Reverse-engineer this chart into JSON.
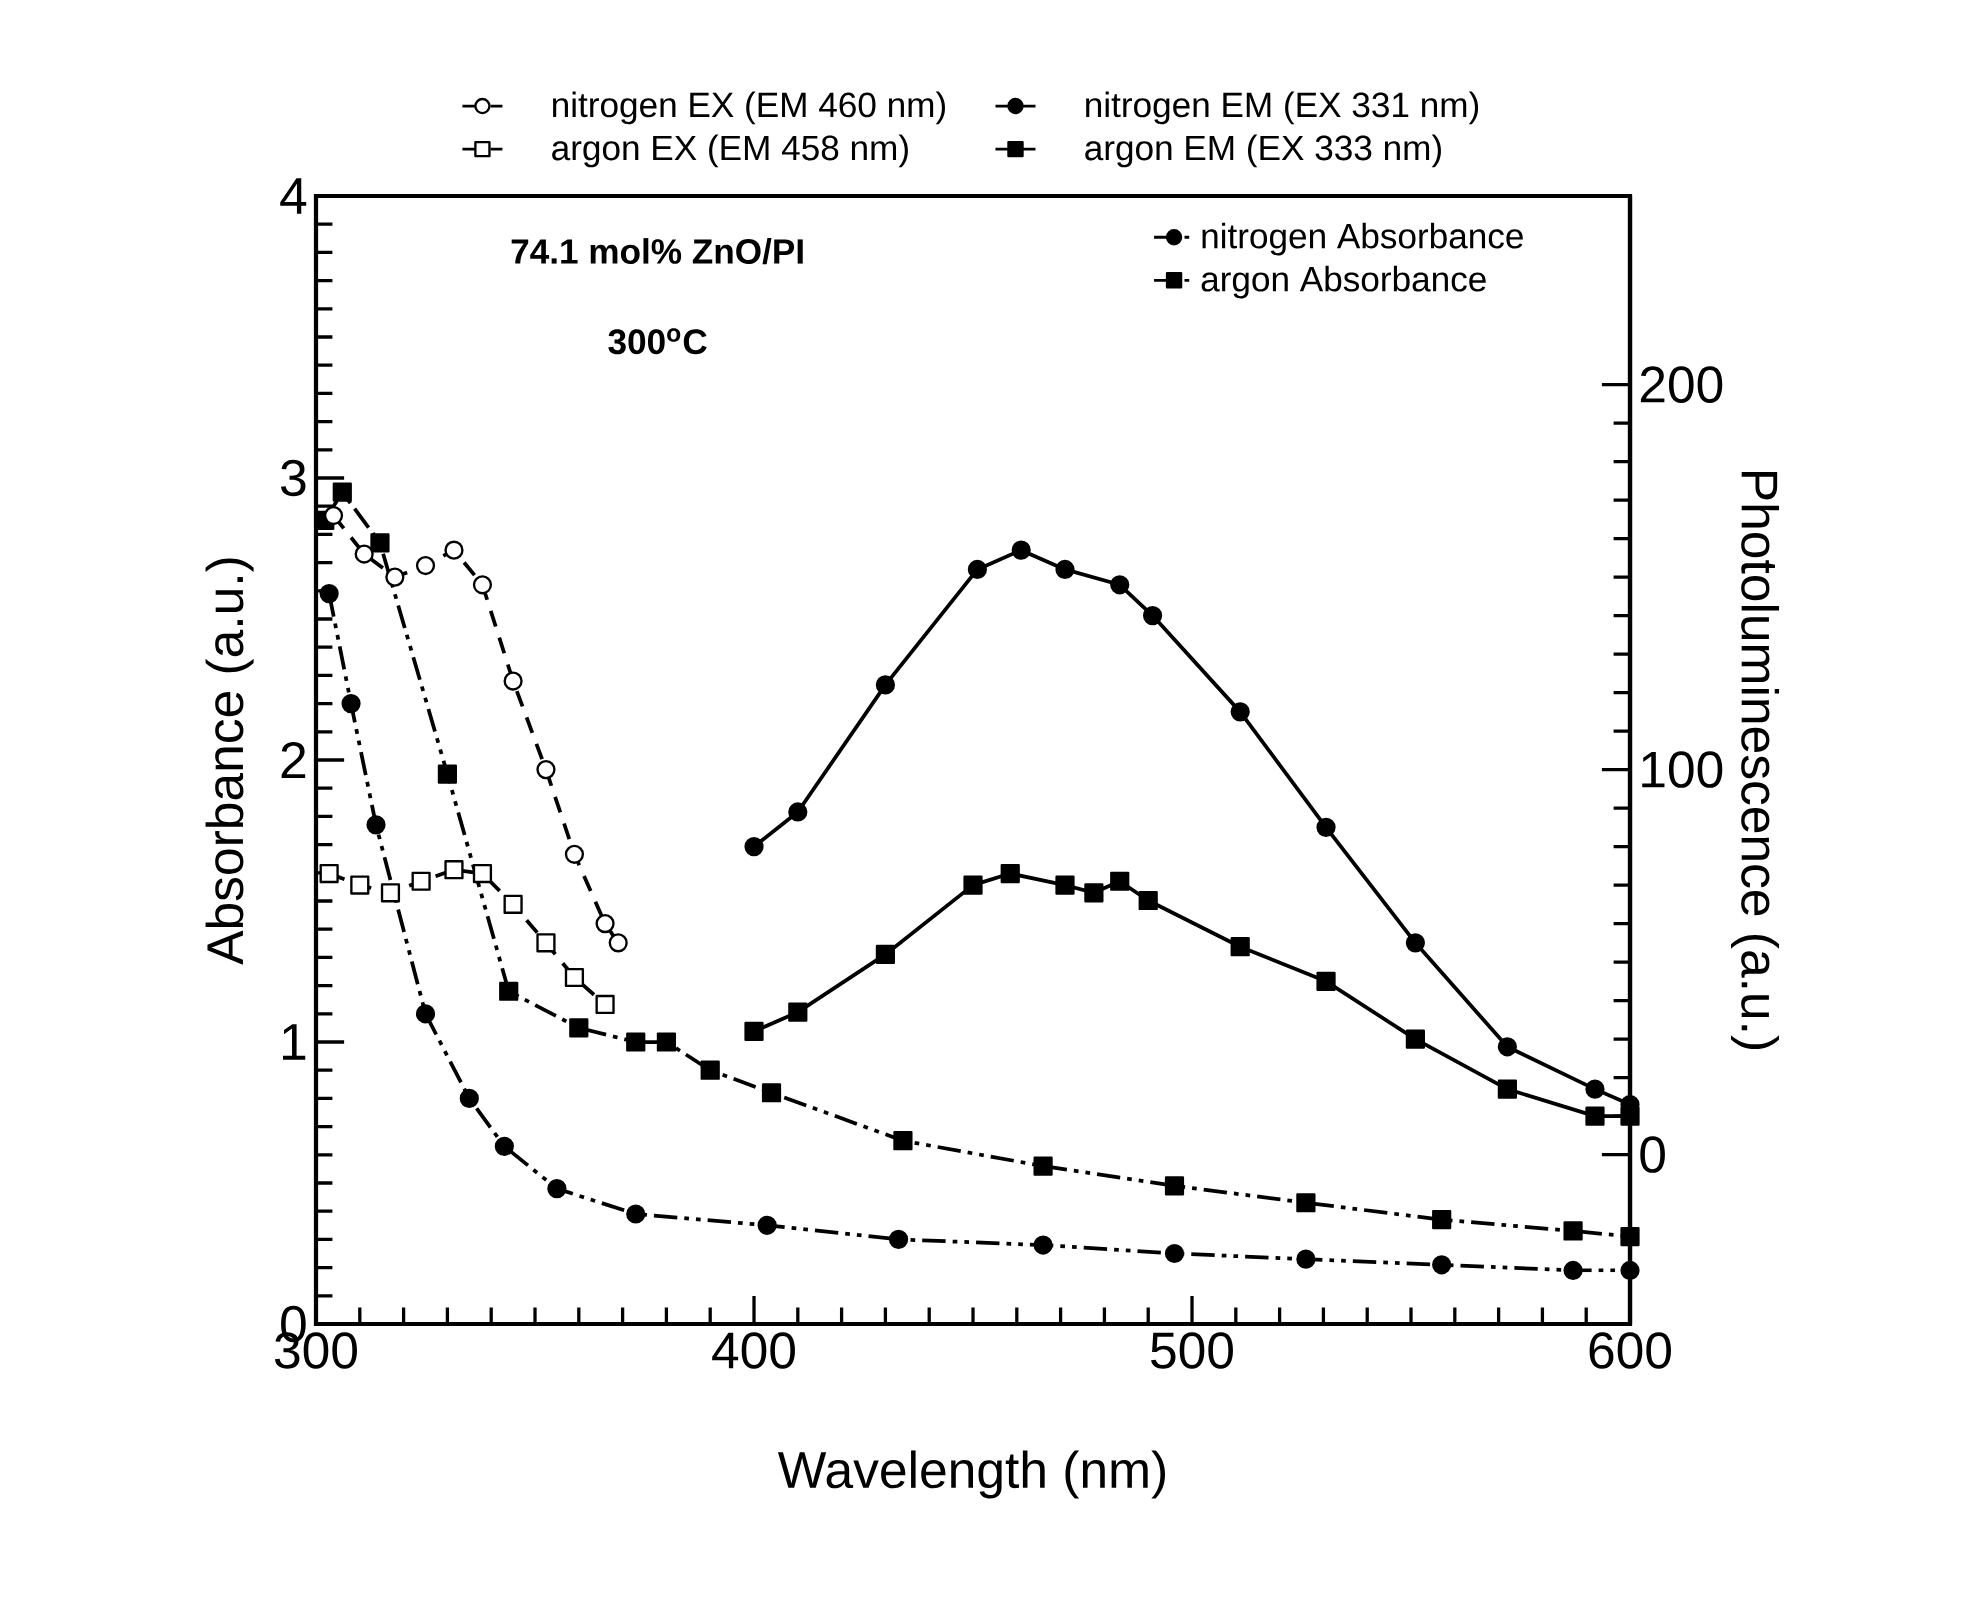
{
  "chart_data": {
    "type": "line",
    "xlabel": "Wavelength (nm)",
    "ylabel": "Absorbance (a.u.)",
    "y2label": "Photoluminescence (a.u.)",
    "annotations": [
      "74.1 mol% ZnO/PI",
      "300$^{o}$C"
    ],
    "xlim": [
      300,
      600
    ],
    "xticks": [
      300,
      400,
      500,
      600
    ],
    "ylim": [
      0,
      4
    ],
    "yticks": [
      0,
      1,
      2,
      3,
      4
    ],
    "y2lim": [
      -44,
      249
    ],
    "y2ticks": [
      0,
      100,
      200
    ],
    "legend": "top",
    "grid": false,
    "series": [
      {
        "name": "nitrogen Absorbance",
        "color": "#000000",
        "marker": "circle",
        "line_style": "dotted",
        "x": [
          303,
          308,
          313.7,
          325,
          335,
          343,
          355,
          373,
          403,
          433,
          466,
          496,
          526,
          557,
          587,
          600
        ],
        "values": [
          2.59,
          2.2,
          1.77,
          1.1,
          0.8,
          0.63,
          0.48,
          0.39,
          0.35,
          0.3,
          0.28,
          0.25,
          0.23,
          0.21,
          0.19,
          0.19
        ]
      },
      {
        "name": "argon Absorbance",
        "color": "#000000",
        "marker": "square",
        "line_style": "dotted",
        "x": [
          302,
          306,
          314.6,
          330,
          344,
          360,
          373,
          380,
          390,
          404,
          434,
          466,
          496,
          526,
          557,
          587,
          600
        ],
        "values": [
          2.85,
          2.95,
          2.77,
          1.95,
          1.18,
          1.05,
          1.0,
          1.0,
          0.9,
          0.82,
          0.65,
          0.56,
          0.49,
          0.43,
          0.37,
          0.33,
          0.31
        ]
      },
      {
        "name": "nitrogen EX (EM 460 nm)",
        "color": "#000000",
        "marker": "circle",
        "line_style": "dashed",
        "axis": "y2",
        "x": [
          304,
          311,
          318,
          325,
          331.5,
          338,
          345,
          352.5,
          359,
          366,
          369
        ],
        "values": [
          166,
          156,
          150,
          153,
          157,
          148,
          123,
          100,
          78,
          60,
          55
        ]
      },
      {
        "name": "nitrogen EM (EX 331 nm)",
        "color": "#000000",
        "marker": "circle",
        "line_style": "solid",
        "axis": "y2",
        "x": [
          400,
          410,
          430,
          451,
          461,
          471,
          483.5,
          491,
          511,
          530.6,
          551,
          572,
          592,
          600
        ],
        "values": [
          80,
          89,
          122,
          152,
          157,
          152,
          148,
          140,
          115,
          85,
          55,
          28,
          17,
          13
        ]
      },
      {
        "name": "argon EX (EM 458 nm)",
        "color": "#000000",
        "marker": "square",
        "line_style": "dashed",
        "axis": "y2",
        "x": [
          303,
          310,
          317,
          324,
          331.5,
          338,
          345,
          352.5,
          359,
          366
        ],
        "values": [
          73,
          70,
          68,
          71,
          74,
          73,
          65,
          55,
          46,
          39
        ]
      },
      {
        "name": "argon EM (EX 333 nm)",
        "color": "#000000",
        "marker": "square",
        "line_style": "solid",
        "axis": "y2",
        "x": [
          400,
          410,
          430,
          450,
          458.5,
          471,
          477.6,
          483.5,
          490,
          511,
          530.6,
          551,
          572,
          592,
          600
        ],
        "values": [
          32,
          37,
          52,
          70,
          73,
          70,
          68,
          71,
          66,
          54,
          45,
          30,
          17,
          10,
          10
        ]
      }
    ]
  }
}
